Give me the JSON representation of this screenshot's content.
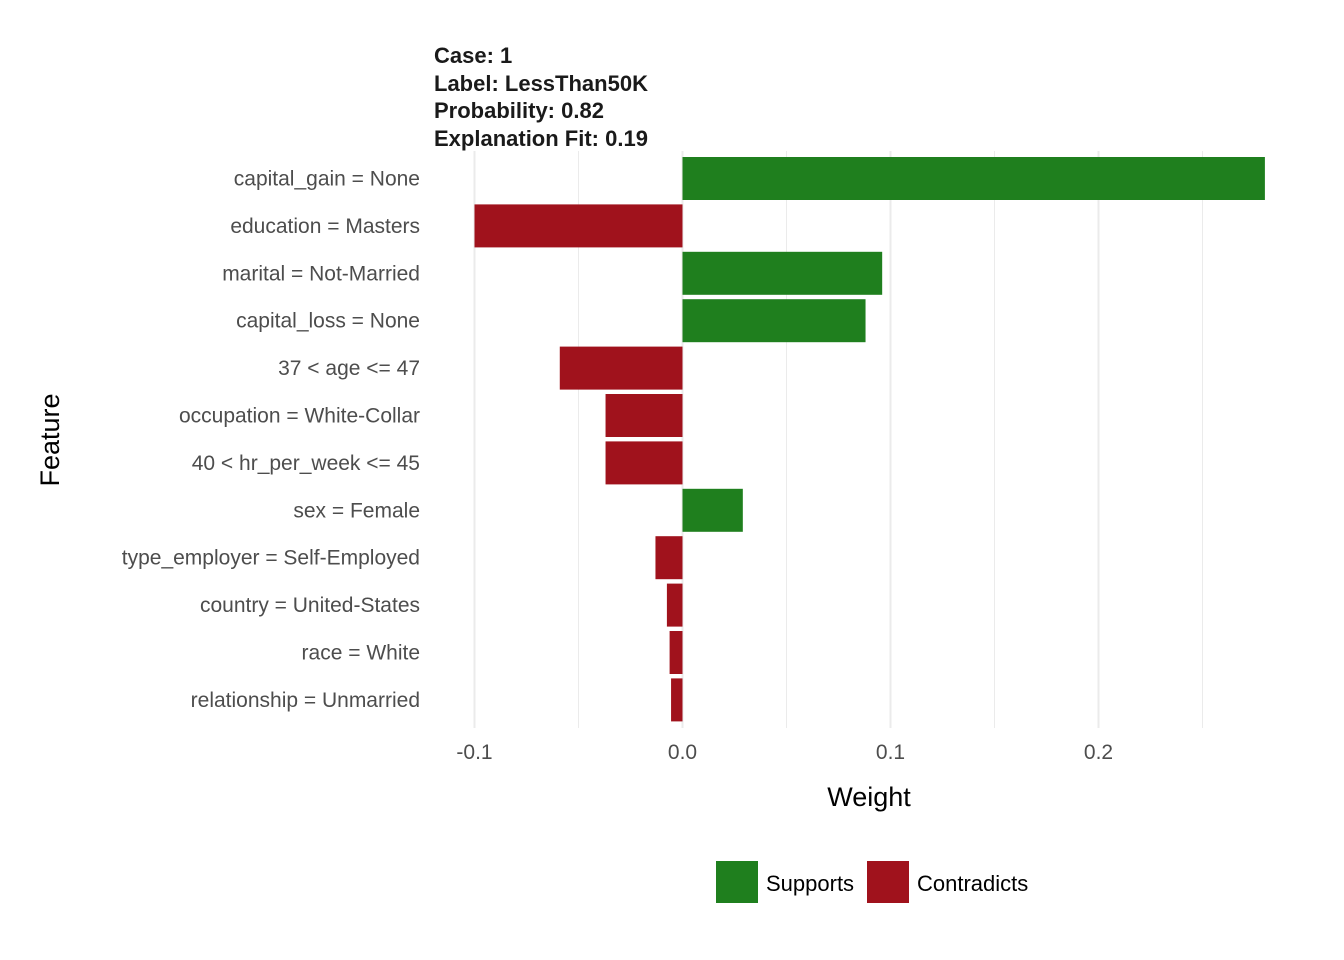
{
  "header": {
    "case": "Case: 1",
    "label": "Label: LessThan50K",
    "probability": "Probability: 0.82",
    "fit": "Explanation Fit: 0.19"
  },
  "colors": {
    "supports": "#1f7f1e",
    "contradicts": "#a0121c",
    "grid": "#ebebeb"
  },
  "chart_data": {
    "type": "bar",
    "orientation": "horizontal",
    "xlabel": "Weight",
    "ylabel": "Feature",
    "xlim": [
      -0.1,
      0.28
    ],
    "xticks": [
      -0.1,
      0.0,
      0.1,
      0.2
    ],
    "xtick_labels": [
      "-0.1",
      "0.0",
      "0.1",
      "0.2"
    ],
    "grid": true,
    "legend_position": "bottom",
    "legend": [
      {
        "key": "supports",
        "label": "Supports"
      },
      {
        "key": "contradicts",
        "label": "Contradicts"
      }
    ],
    "categories": [
      "capital_gain = None",
      "education = Masters",
      "marital = Not-Married",
      "capital_loss = None",
      "37 < age <= 47",
      "occupation = White-Collar",
      "40 < hr_per_week <= 45",
      "sex = Female",
      "type_employer = Self-Employed",
      "country = United-States",
      "race = White",
      "relationship = Unmarried"
    ],
    "values": [
      0.28,
      -0.1,
      0.096,
      0.088,
      -0.059,
      -0.037,
      -0.037,
      0.029,
      -0.013,
      -0.0075,
      -0.0062,
      -0.0055
    ]
  }
}
